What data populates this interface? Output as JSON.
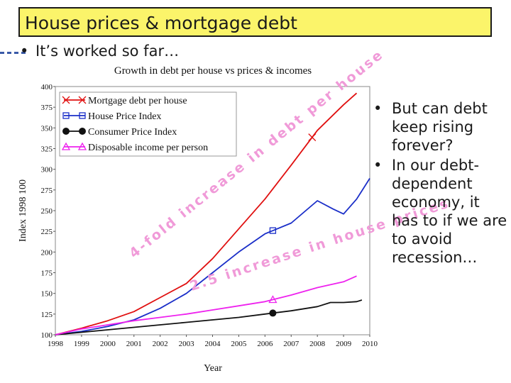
{
  "slide": {
    "title": "House prices & mortgage debt",
    "bullet_main": "It’s worked so far…",
    "right_bullets": [
      "But can debt keep rising forever?",
      "In our debt-dependent economy, it has to if we are to avoid recession…"
    ]
  },
  "chart_data": {
    "type": "line",
    "title": "Growth in debt per house vs prices & incomes",
    "xlabel": "Year",
    "ylabel": "Index 1998  100",
    "xlim": [
      1998,
      2010
    ],
    "ylim": [
      100,
      400
    ],
    "xticks": [
      "1998",
      "1999",
      "2000",
      "2001",
      "2002",
      "2003",
      "2004",
      "2005",
      "2006",
      "2007",
      "2008",
      "2009",
      "2010"
    ],
    "yticks": [
      "100",
      "125",
      "150",
      "175",
      "200",
      "225",
      "250",
      "275",
      "300",
      "325",
      "350",
      "375",
      "400"
    ],
    "legend_position": "top-left",
    "series": [
      {
        "name": "Mortgage debt per house",
        "color": "#e01010",
        "marker": "x",
        "points": [
          [
            1998,
            100
          ],
          [
            1999,
            108
          ],
          [
            2000,
            117
          ],
          [
            2001,
            128
          ],
          [
            2002,
            145
          ],
          [
            2003,
            162
          ],
          [
            2004,
            192
          ],
          [
            2005,
            228
          ],
          [
            2006,
            264
          ],
          [
            2007,
            305
          ],
          [
            2008,
            347
          ],
          [
            2009,
            378
          ],
          [
            2009.5,
            392
          ]
        ]
      },
      {
        "name": "House Price Index",
        "color": "#1a2ec8",
        "marker": "square",
        "points": [
          [
            1998,
            100
          ],
          [
            1999,
            104
          ],
          [
            2000,
            110
          ],
          [
            2001,
            118
          ],
          [
            2002,
            132
          ],
          [
            2003,
            150
          ],
          [
            2004,
            175
          ],
          [
            2005,
            200
          ],
          [
            2006,
            222
          ],
          [
            2007,
            235
          ],
          [
            2008,
            262
          ],
          [
            2008.6,
            252
          ],
          [
            2009,
            246
          ],
          [
            2009.5,
            264
          ],
          [
            2010,
            289
          ]
        ]
      },
      {
        "name": "Consumer Price Index",
        "color": "#111111",
        "marker": "circle",
        "points": [
          [
            1998,
            100
          ],
          [
            1999,
            103
          ],
          [
            2000,
            106
          ],
          [
            2001,
            109
          ],
          [
            2002,
            112
          ],
          [
            2003,
            115
          ],
          [
            2004,
            118
          ],
          [
            2005,
            121
          ],
          [
            2006,
            125
          ],
          [
            2007,
            129
          ],
          [
            2008,
            134
          ],
          [
            2008.5,
            139
          ],
          [
            2009,
            139
          ],
          [
            2009.5,
            140
          ],
          [
            2009.7,
            142
          ]
        ]
      },
      {
        "name": "Disposable income per person",
        "color": "#ee22ee",
        "marker": "triangle",
        "points": [
          [
            1998,
            100
          ],
          [
            1999,
            107
          ],
          [
            2000,
            112
          ],
          [
            2001,
            117
          ],
          [
            2002,
            121
          ],
          [
            2003,
            125
          ],
          [
            2004,
            130
          ],
          [
            2005,
            135
          ],
          [
            2006,
            140
          ],
          [
            2007,
            148
          ],
          [
            2008,
            157
          ],
          [
            2009,
            164
          ],
          [
            2009.5,
            171
          ]
        ]
      }
    ],
    "annotations": [
      "4-fold increase in debt per house",
      "2.5 increase in house prices"
    ]
  }
}
